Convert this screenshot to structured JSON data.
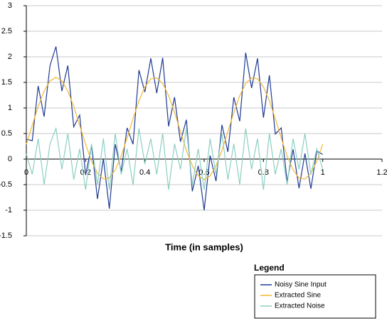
{
  "chart_data": {
    "type": "line",
    "x_label": "Time (in samples)",
    "legend_title": "Legend",
    "legend": "bottom-right",
    "grid": true,
    "x": [
      0,
      0.02,
      0.04,
      0.06,
      0.08,
      0.1,
      0.12,
      0.14,
      0.16,
      0.18,
      0.2,
      0.22,
      0.24,
      0.26,
      0.28,
      0.3,
      0.32,
      0.34,
      0.36,
      0.38,
      0.4,
      0.42,
      0.44,
      0.46,
      0.48,
      0.5,
      0.52,
      0.54,
      0.56,
      0.58,
      0.6,
      0.62,
      0.64,
      0.66,
      0.68,
      0.7,
      0.72,
      0.74,
      0.76,
      0.78,
      0.8,
      0.82,
      0.84,
      0.86,
      0.88,
      0.9,
      0.92,
      0.94,
      0.96,
      0.98,
      1
    ],
    "series": [
      {
        "name": "Noisy Sine Input",
        "color": "#1f3a93",
        "values": [
          0.39,
          0.36,
          1.43,
          0.83,
          1.83,
          2.2,
          1.33,
          1.83,
          0.63,
          0.86,
          -0.31,
          0.26,
          -0.78,
          0.01,
          -0.97,
          0.29,
          -0.24,
          0.61,
          0.29,
          1.74,
          1.31,
          1.97,
          1.29,
          1.98,
          0.64,
          1.21,
          0.34,
          0.77,
          -0.63,
          -0.13,
          -1.0,
          0.07,
          -0.43,
          0.67,
          0.14,
          1.21,
          0.74,
          2.08,
          1.39,
          1.97,
          0.81,
          1.64,
          0.49,
          0.61,
          -0.44,
          0.19,
          -0.57,
          0.11,
          -0.58,
          0.16,
          0.09
        ]
      },
      {
        "name": "Extracted Sine",
        "color": "#f5b82e",
        "values": [
          0.29,
          0.66,
          1.03,
          1.33,
          1.53,
          1.6,
          1.53,
          1.33,
          1.03,
          0.66,
          0.29,
          -0.04,
          -0.28,
          -0.39,
          -0.37,
          -0.21,
          0.06,
          0.41,
          0.79,
          1.14,
          1.41,
          1.57,
          1.59,
          1.48,
          1.24,
          0.91,
          0.54,
          0.17,
          -0.13,
          -0.33,
          -0.4,
          -0.33,
          -0.13,
          0.17,
          0.54,
          0.91,
          1.24,
          1.48,
          1.59,
          1.57,
          1.41,
          1.14,
          0.79,
          0.41,
          0.06,
          -0.21,
          -0.37,
          -0.39,
          -0.28,
          -0.04,
          0.29
        ]
      },
      {
        "name": "Extracted Noise",
        "color": "#8ccfc1",
        "values": [
          0.1,
          -0.3,
          0.4,
          -0.5,
          0.3,
          0.6,
          -0.2,
          0.5,
          -0.4,
          0.2,
          -0.6,
          0.3,
          -0.5,
          0.4,
          -0.6,
          0.5,
          -0.3,
          0.2,
          -0.5,
          0.6,
          -0.1,
          0.4,
          -0.3,
          0.5,
          -0.6,
          0.3,
          -0.2,
          0.6,
          -0.5,
          0.2,
          -0.6,
          0.4,
          -0.3,
          0.5,
          -0.4,
          0.3,
          -0.5,
          0.6,
          -0.2,
          0.4,
          -0.6,
          0.5,
          -0.3,
          0.2,
          -0.5,
          0.4,
          -0.2,
          0.5,
          -0.3,
          0.2,
          -0.2
        ]
      }
    ],
    "xlim": [
      0,
      1.2
    ],
    "xticks": [
      0,
      0.2,
      0.4,
      0.6,
      0.8,
      1,
      1.2
    ],
    "ylim": [
      -1.5,
      3
    ],
    "yticks": [
      -1.5,
      -1,
      -0.5,
      0,
      0.5,
      1,
      1.5,
      2,
      2.5,
      3
    ]
  }
}
